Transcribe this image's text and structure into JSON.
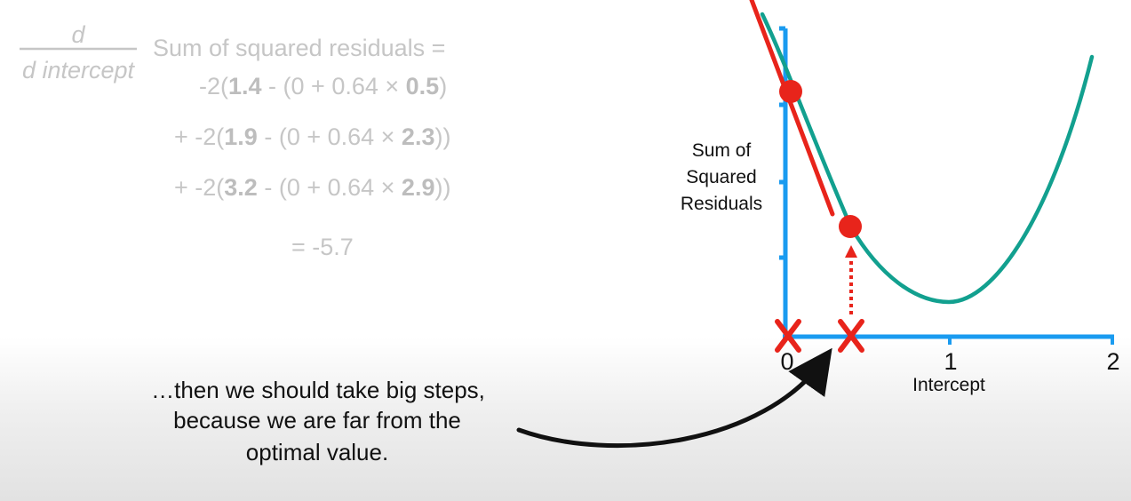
{
  "derivative": {
    "numerator": "d",
    "denominator": "d intercept",
    "lhs": "Sum of squared residuals =",
    "terms": [
      {
        "prefix": "-2(",
        "obs": "1.4",
        "mid": " - (0 + 0.64 × ",
        "x": "0.5",
        "suffix": ")"
      },
      {
        "prefix": "+ -2(",
        "obs": "1.9",
        "mid": " - (0 + 0.64 × ",
        "x": "2.3",
        "suffix": "))"
      },
      {
        "prefix": "+ -2(",
        "obs": "3.2",
        "mid": " - (0 + 0.64 × ",
        "x": "2.9",
        "suffix": "))"
      }
    ],
    "result": "= -5.7"
  },
  "plot": {
    "y_label_lines": [
      "Sum of",
      "Squared",
      "Residuals"
    ],
    "x_label": "Intercept",
    "x_ticks": [
      "0",
      "1",
      "2"
    ],
    "axis_color": "#1a9bf0",
    "curve_color": "#12a08f",
    "marker_color": "#e8241b"
  },
  "caption": {
    "lines": [
      "…then we should take big steps,",
      "because we are far from the",
      "optimal value."
    ]
  }
}
